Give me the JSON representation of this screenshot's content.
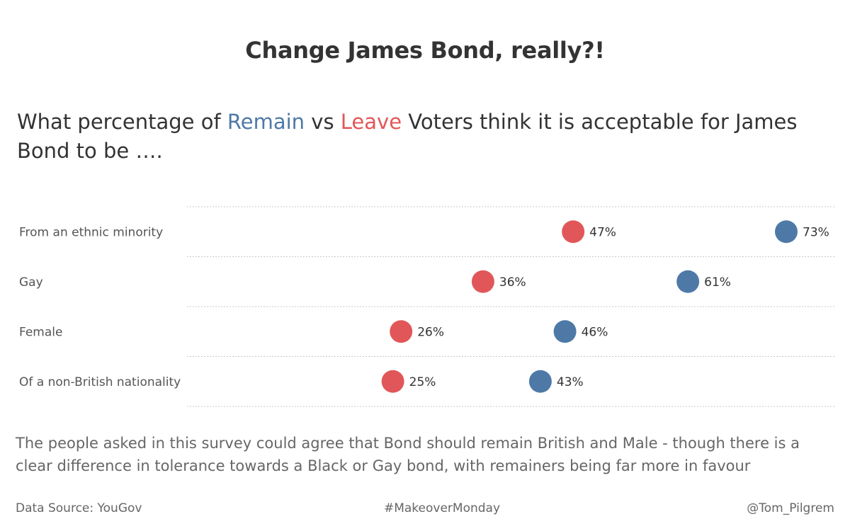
{
  "header": {
    "title": "Change James Bond, really?!",
    "subtitle_pre": "What percentage of ",
    "subtitle_remain": "Remain",
    "subtitle_mid": " vs ",
    "subtitle_leave": "Leave",
    "subtitle_post": " Voters think it is acceptable for James Bond to be …."
  },
  "colors": {
    "remain": "#4e79a7",
    "leave": "#e15759",
    "grid": "#c8c8c8"
  },
  "chart_data": {
    "type": "scatter",
    "categories": [
      "From an ethnic minority",
      "Gay",
      "Female",
      "Of a non-British nationality"
    ],
    "series": [
      {
        "name": "Remain",
        "values": [
          73,
          61,
          46,
          43
        ],
        "labels": [
          "73%",
          "61%",
          "46%",
          "43%"
        ]
      },
      {
        "name": "Leave",
        "values": [
          47,
          36,
          26,
          25
        ],
        "labels": [
          "47%",
          "36%",
          "26%",
          "25%"
        ]
      }
    ],
    "grid": true
  },
  "caption": "The people asked in this survey could agree that Bond should remain British and Male - though there is a clear difference in tolerance towards a Black or Gay bond, with remainers being far more in favour",
  "footer": {
    "source": "Data Source: YouGov",
    "hashtag": "#MakeoverMonday",
    "author": "@Tom_Pilgrem"
  }
}
